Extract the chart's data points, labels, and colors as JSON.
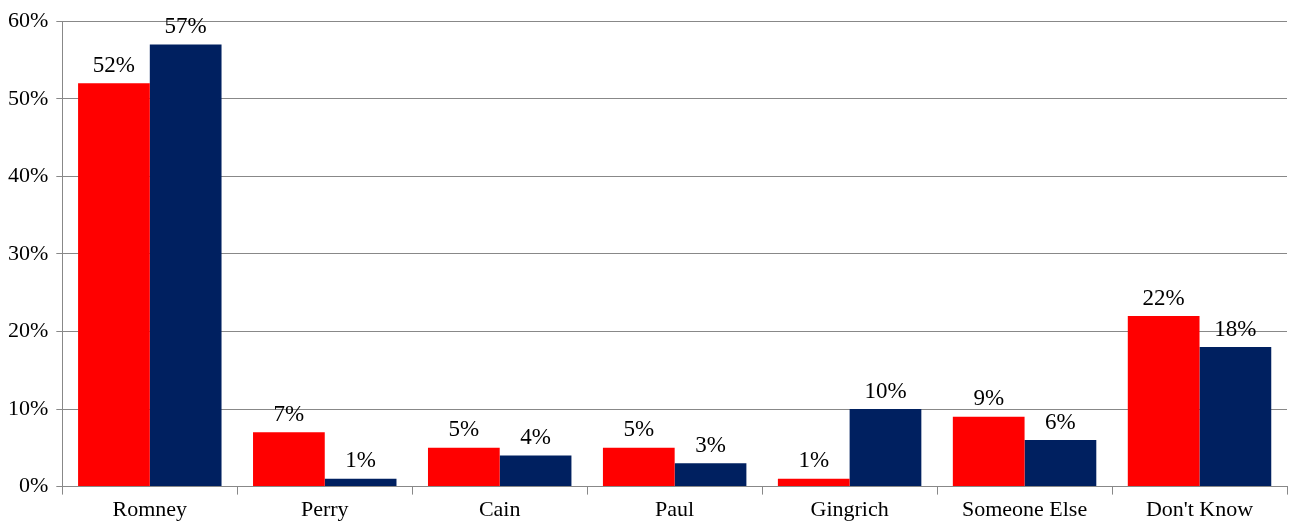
{
  "chart_data": {
    "type": "bar",
    "categories": [
      "Romney",
      "Perry",
      "Cain",
      "Paul",
      "Gingrich",
      "Someone Else",
      "Don't Know"
    ],
    "series": [
      {
        "color": "#ff0000",
        "values": [
          52,
          7,
          5,
          5,
          1,
          9,
          22
        ],
        "value_labels": [
          "52%",
          "7%",
          "5%",
          "5%",
          "1%",
          "9%",
          "22%"
        ]
      },
      {
        "color": "#002060",
        "values": [
          57,
          1,
          4,
          3,
          10,
          6,
          18
        ],
        "value_labels": [
          "57%",
          "1%",
          "4%",
          "3%",
          "10%",
          "6%",
          "18%"
        ]
      }
    ],
    "ylim": [
      0,
      60
    ],
    "yticks": [
      {
        "value": 0,
        "label": "0%"
      },
      {
        "value": 10,
        "label": "10%"
      },
      {
        "value": 20,
        "label": "20%"
      },
      {
        "value": 30,
        "label": "30%"
      },
      {
        "value": 40,
        "label": "40%"
      },
      {
        "value": 50,
        "label": "50%"
      },
      {
        "value": 60,
        "label": "60%"
      }
    ],
    "grid": "y",
    "legend": false
  }
}
